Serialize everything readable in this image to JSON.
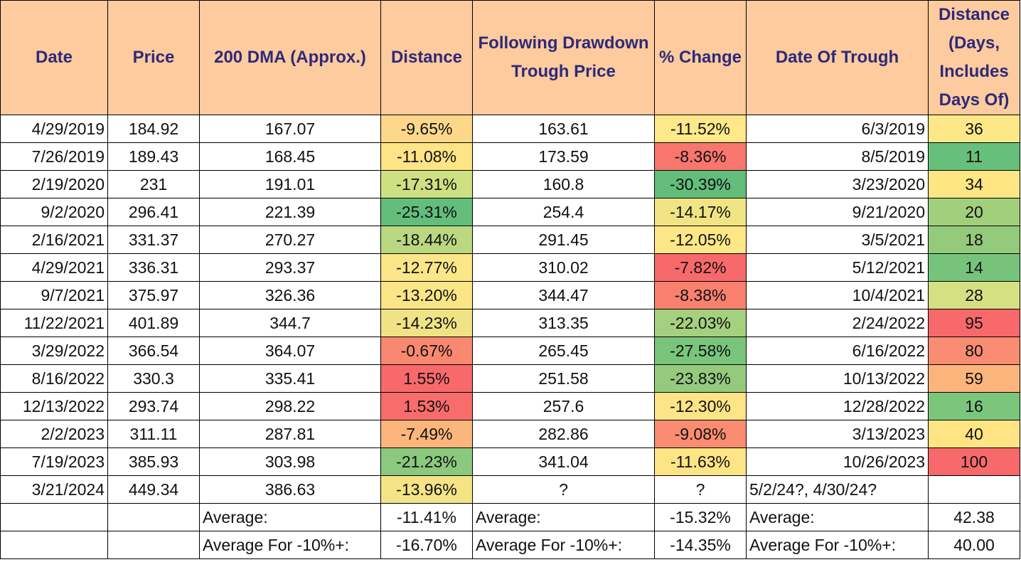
{
  "headers": [
    "Date",
    "Price",
    "200 DMA (Approx.)",
    "Distance",
    "Following Drawdown Trough Price",
    "% Change",
    "Date Of Trough",
    "Distance (Days, Includes Days Of)"
  ],
  "rows": [
    {
      "date": "4/29/2019",
      "price": "184.92",
      "dma": "167.07",
      "distance": "-9.65%",
      "trough_price": "163.61",
      "pct_change": "-11.52%",
      "trough_date": "6/3/2019",
      "days": "36",
      "c_dist": "#fdd88a",
      "c_pct": "#fde88a",
      "c_days": "#fde887"
    },
    {
      "date": "7/26/2019",
      "price": "189.43",
      "dma": "168.45",
      "distance": "-11.08%",
      "trough_price": "173.59",
      "pct_change": "-8.36%",
      "trough_date": "8/5/2019",
      "days": "11",
      "c_dist": "#fde486",
      "c_pct": "#f8766d",
      "c_days": "#66bf7a"
    },
    {
      "date": "2/19/2020",
      "price": "231",
      "dma": "191.01",
      "distance": "-17.31%",
      "trough_price": "160.8",
      "pct_change": "-30.39%",
      "trough_date": "3/23/2020",
      "days": "34",
      "c_dist": "#cfe083",
      "c_pct": "#63be7b",
      "c_days": "#fee684"
    },
    {
      "date": "9/2/2020",
      "price": "296.41",
      "dma": "221.39",
      "distance": "-25.31%",
      "trough_price": "254.4",
      "pct_change": "-14.17%",
      "trough_date": "9/21/2020",
      "days": "20",
      "c_dist": "#63be7b",
      "c_pct": "#f1e485",
      "c_days": "#a2cf7c"
    },
    {
      "date": "2/16/2021",
      "price": "331.37",
      "dma": "270.27",
      "distance": "-18.44%",
      "trough_price": "291.45",
      "pct_change": "-12.05%",
      "trough_date": "3/5/2021",
      "days": "18",
      "c_dist": "#b9d881",
      "c_pct": "#fde786",
      "c_days": "#93ca7b"
    },
    {
      "date": "4/29/2021",
      "price": "336.31",
      "dma": "293.37",
      "distance": "-12.77%",
      "trough_price": "310.02",
      "pct_change": "-7.82%",
      "trough_date": "5/12/2021",
      "days": "14",
      "c_dist": "#fbe688",
      "c_pct": "#f8696b",
      "c_days": "#76c47b"
    },
    {
      "date": "9/7/2021",
      "price": "375.97",
      "dma": "326.36",
      "distance": "-13.20%",
      "trough_price": "344.47",
      "pct_change": "-8.38%",
      "trough_date": "10/4/2021",
      "days": "28",
      "c_dist": "#fbe687",
      "c_pct": "#f9806f",
      "c_days": "#d4e082"
    },
    {
      "date": "11/22/2021",
      "price": "401.89",
      "dma": "344.7",
      "distance": "-14.23%",
      "trough_price": "313.35",
      "pct_change": "-22.03%",
      "trough_date": "2/24/2022",
      "days": "95",
      "c_dist": "#f0e386",
      "c_pct": "#a4d07f",
      "c_days": "#f8696b"
    },
    {
      "date": "3/29/2022",
      "price": "366.54",
      "dma": "364.07",
      "distance": "-0.67%",
      "trough_price": "265.45",
      "pct_change": "-27.58%",
      "trough_date": "6/16/2022",
      "days": "80",
      "c_dist": "#f98870",
      "c_pct": "#79c57c",
      "c_days": "#f98c72"
    },
    {
      "date": "8/16/2022",
      "price": "330.3",
      "dma": "335.41",
      "distance": "1.55%",
      "trough_price": "251.58",
      "pct_change": "-23.83%",
      "trough_date": "10/13/2022",
      "days": "59",
      "c_dist": "#f8696b",
      "c_pct": "#95ca7d",
      "c_days": "#fbb47b"
    },
    {
      "date": "12/13/2022",
      "price": "293.74",
      "dma": "298.22",
      "distance": "1.53%",
      "trough_price": "257.6",
      "pct_change": "-12.30%",
      "trough_date": "12/28/2022",
      "days": "16",
      "c_dist": "#f86c6b",
      "c_pct": "#fde486",
      "c_days": "#7bc67b"
    },
    {
      "date": "2/2/2023",
      "price": "311.11",
      "dma": "287.81",
      "distance": "-7.49%",
      "trough_price": "282.86",
      "pct_change": "-9.08%",
      "trough_date": "3/13/2023",
      "days": "40",
      "c_dist": "#fcb67c",
      "c_pct": "#f98c71",
      "c_days": "#fee483"
    },
    {
      "date": "7/19/2023",
      "price": "385.93",
      "dma": "303.98",
      "distance": "-21.23%",
      "trough_price": "341.04",
      "pct_change": "-11.63%",
      "trough_date": "10/26/2023",
      "days": "100",
      "c_dist": "#8bc97e",
      "c_pct": "#fde586",
      "c_days": "#f8696b"
    },
    {
      "date": "3/21/2024",
      "price": "449.34",
      "dma": "386.63",
      "distance": "-13.96%",
      "trough_price": "?",
      "pct_change": "?",
      "trough_date": "5/2/24?, 4/30/24?",
      "days": "",
      "c_dist": "#f4e486",
      "c_pct": "#ffffff",
      "c_days": "#ffffff"
    }
  ],
  "summary": [
    {
      "label": "Average:",
      "distance": "-11.41%",
      "label2": "Average:",
      "pct_change": "-15.32%",
      "label3": "Average:",
      "days": "42.38"
    },
    {
      "label": "Average For -10%+:",
      "distance": "-16.70%",
      "label2": "Average For -10%+:",
      "pct_change": "-14.35%",
      "label3": "Average For -10%+:",
      "days": "40.00"
    }
  ],
  "colors": {
    "header_bg": "#fdcb9e",
    "header_text": "#2e2a7a"
  }
}
